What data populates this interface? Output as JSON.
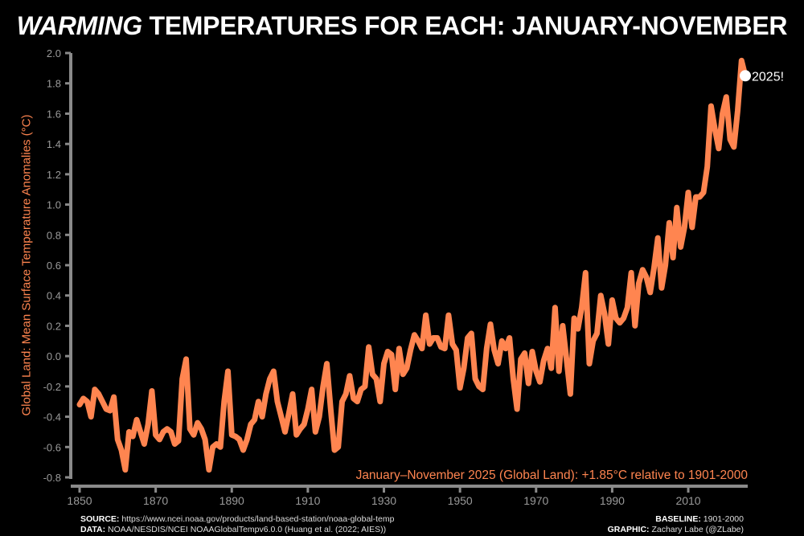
{
  "title": {
    "emph": "WARMING",
    "rest": " TEMPERATURES FOR EACH: JANUARY-NOVEMBER"
  },
  "chart_data": {
    "type": "line",
    "title": "WARMING TEMPERATURES FOR EACH: JANUARY-NOVEMBER",
    "xlabel": "",
    "ylabel": "Global Land: Mean Surface Temperature Anomalies (°C)",
    "xlim": [
      1850,
      2025
    ],
    "ylim": [
      -0.8,
      2.0
    ],
    "xticks": [
      1850,
      1870,
      1890,
      1910,
      1930,
      1950,
      1970,
      1990,
      2010
    ],
    "yticks": [
      "-0.8",
      "-0.6",
      "-0.4",
      "-0.2",
      "0.0",
      "0.2",
      "0.4",
      "0.6",
      "0.8",
      "1.0",
      "1.2",
      "1.4",
      "1.6",
      "1.8",
      "2.0"
    ],
    "grid": false,
    "line_color": "#ff8550",
    "x_start": 1850,
    "values": [
      -0.32,
      -0.28,
      -0.3,
      -0.4,
      -0.22,
      -0.25,
      -0.3,
      -0.35,
      -0.36,
      -0.27,
      -0.55,
      -0.62,
      -0.75,
      -0.5,
      -0.53,
      -0.42,
      -0.5,
      -0.58,
      -0.45,
      -0.23,
      -0.52,
      -0.55,
      -0.5,
      -0.48,
      -0.5,
      -0.58,
      -0.56,
      -0.15,
      -0.02,
      -0.48,
      -0.52,
      -0.44,
      -0.48,
      -0.55,
      -0.75,
      -0.6,
      -0.58,
      -0.6,
      -0.3,
      -0.1,
      -0.52,
      -0.53,
      -0.55,
      -0.62,
      -0.55,
      -0.45,
      -0.42,
      -0.3,
      -0.4,
      -0.25,
      -0.15,
      -0.1,
      -0.3,
      -0.4,
      -0.5,
      -0.38,
      -0.25,
      -0.52,
      -0.48,
      -0.45,
      -0.35,
      -0.22,
      -0.5,
      -0.4,
      -0.2,
      -0.05,
      -0.35,
      -0.62,
      -0.6,
      -0.3,
      -0.25,
      -0.13,
      -0.28,
      -0.3,
      -0.22,
      -0.2,
      0.06,
      -0.12,
      -0.15,
      -0.3,
      -0.05,
      0.03,
      0.01,
      -0.22,
      0.05,
      -0.12,
      -0.08,
      0.04,
      0.14,
      0.1,
      0.05,
      0.27,
      0.08,
      0.12,
      0.12,
      0.06,
      0.05,
      0.27,
      0.08,
      0.04,
      -0.21,
      -0.08,
      0.12,
      0.15,
      -0.15,
      -0.2,
      -0.22,
      0.05,
      0.21,
      0.04,
      -0.05,
      0.1,
      0.05,
      0.12,
      -0.15,
      -0.35,
      -0.02,
      0.02,
      -0.18,
      0.03,
      -0.1,
      -0.17,
      -0.03,
      0.05,
      -0.08,
      0.32,
      -0.1,
      0.2,
      -0.02,
      -0.25,
      0.25,
      0.18,
      0.32,
      0.55,
      -0.05,
      0.1,
      0.15,
      0.4,
      0.28,
      0.08,
      0.37,
      0.25,
      0.22,
      0.25,
      0.32,
      0.55,
      0.2,
      0.48,
      0.57,
      0.52,
      0.42,
      0.58,
      0.78,
      0.45,
      0.6,
      0.88,
      0.65,
      0.98,
      0.72,
      0.85,
      1.08,
      0.85,
      1.05,
      1.05,
      1.08,
      1.25,
      1.65,
      1.5,
      1.37,
      1.6,
      1.71,
      1.43,
      1.38,
      1.62,
      1.95,
      1.85
    ],
    "highlight": {
      "year": 2025,
      "value": 1.85,
      "label": "2025!"
    },
    "annotation": "January–November 2025 (Global Land): +1.85°C relative to 1901-2000"
  },
  "footer": {
    "source_label": "SOURCE:",
    "source": " https://www.ncei.noaa.gov/products/land-based-station/noaa-global-temp",
    "data_label": "DATA:",
    "data": " NOAA/NESDIS/NCEI NOAAGlobalTempv6.0.0 (Huang et al. (2022; AIES))",
    "baseline_label": "BASELINE:",
    "baseline": " 1901-2000",
    "graphic_label": "GRAPHIC:",
    "graphic": " Zachary Labe (@ZLabe)"
  }
}
